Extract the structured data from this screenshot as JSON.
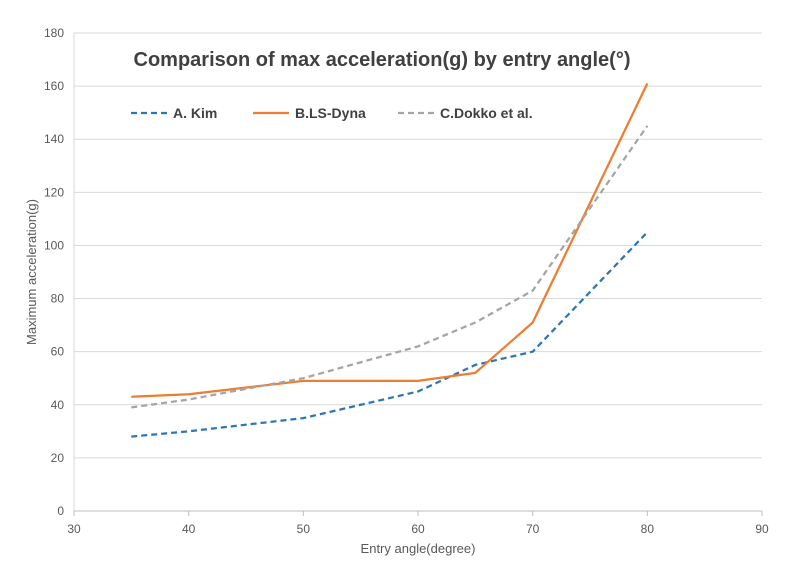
{
  "chart_data": {
    "type": "line",
    "title": "Comparison of max acceleration(g) by entry angle(°)",
    "xlabel": "Entry angle(degree)",
    "ylabel": "Maximum acceleration(g)",
    "xlim": [
      30,
      90
    ],
    "ylim": [
      0,
      180
    ],
    "x_ticks": [
      "30",
      "40",
      "50",
      "60",
      "70",
      "80",
      "90"
    ],
    "y_ticks": [
      "0",
      "20",
      "40",
      "60",
      "80",
      "100",
      "120",
      "140",
      "160",
      "180"
    ],
    "grid": "horizontal",
    "legend_position": "top-left",
    "series": [
      {
        "name": "A. Kim",
        "color": "#2E75B6",
        "dash": "dashed",
        "points": [
          [
            35,
            28
          ],
          [
            40,
            30
          ],
          [
            50,
            35
          ],
          [
            60,
            45
          ],
          [
            65,
            55
          ],
          [
            70,
            60
          ],
          [
            80,
            105
          ]
        ]
      },
      {
        "name": "B.LS-Dyna",
        "color": "#ED7D31",
        "dash": "solid",
        "points": [
          [
            35,
            43
          ],
          [
            40,
            44
          ],
          [
            50,
            49
          ],
          [
            60,
            49
          ],
          [
            65,
            52
          ],
          [
            70,
            71
          ],
          [
            80,
            161
          ]
        ]
      },
      {
        "name": "C.Dokko et al.",
        "color": "#A5A5A5",
        "dash": "dashed",
        "points": [
          [
            35,
            39
          ],
          [
            40,
            42
          ],
          [
            50,
            50
          ],
          [
            60,
            62
          ],
          [
            65,
            71
          ],
          [
            70,
            83
          ],
          [
            80,
            145
          ]
        ]
      }
    ]
  }
}
